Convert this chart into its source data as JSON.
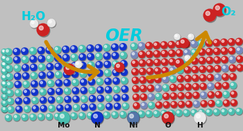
{
  "bg_color": "#c0c0c0",
  "oer_text": "OER",
  "oer_color": "#00ccdd",
  "h2o_text": "H₂O",
  "o2_text": "O₂",
  "label_color": "#00ccdd",
  "arrow_color": "#cc8800",
  "legend_labels": [
    "Mo",
    "N",
    "Ni",
    "O",
    "H"
  ],
  "legend_colors": [
    "#4abfb0",
    "#1133cc",
    "#5577aa",
    "#cc2222",
    "#e8e8e8"
  ],
  "legend_edge_colors": [
    "#2a8f82",
    "#0a1f88",
    "#334466",
    "#881111",
    "#aaaaaa"
  ],
  "teal_col": "#4abfb0",
  "blue_col": "#1133cc",
  "red_col": "#cc2222",
  "white_col": "#e8e8e8",
  "water_O_color": "#cc2222",
  "water_H_color": "#e8e8e8",
  "o2_O_color": "#cc2222"
}
